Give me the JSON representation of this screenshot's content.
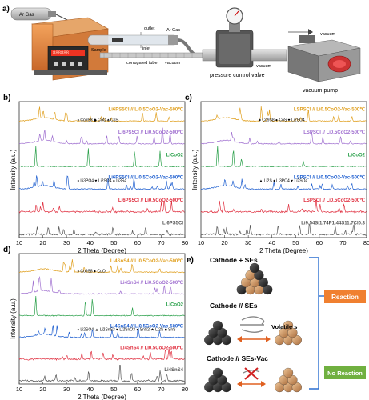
{
  "panel_a": {
    "label": "a)",
    "ar_gas_1": "Ar Gas",
    "ar_gas_2": "Ar Gas",
    "outlet": "outlet",
    "inlet": "inlet",
    "sample": "Sample",
    "corrugated_tube": "corrugated tube",
    "vacuum_1": "vacuum",
    "vacuum_2": "vacuum",
    "vacuum_3": "vacuum",
    "pressure_control_valve": "pressure control valve",
    "vacuum_pump": "vacuum pump",
    "furnace_display": "888888"
  },
  "axes": {
    "xlabel": "2 Theta (Degree)",
    "ylabel": "Intensity (a.u.)",
    "xticks": [
      "10",
      "20",
      "30",
      "40",
      "50",
      "60",
      "70",
      "80"
    ]
  },
  "panel_b": {
    "label": "b)",
    "traces": [
      {
        "label": "Li6PS5Cl // Li0.5CoO2-Vac-500℃",
        "color": "#e0a020"
      },
      {
        "label": "Li6PS5Cl // Li0.5CoO2-500℃",
        "color": "#a070d0"
      },
      {
        "label": "LiCoO2",
        "color": "#2aa04a"
      },
      {
        "label": "Li6PS5Cl // Li0.5CoO2-Vac-500℃",
        "color": "#2060d0"
      },
      {
        "label": "Li6PS5Cl // Li0.5CoO2-500℃",
        "color": "#e03040"
      },
      {
        "label": "Li6PS5Cl",
        "color": "#555555"
      }
    ],
    "annotations": [
      "♦ Co9S8 ◆ CoO ♠ CoS",
      "♦ Li3PO4 ♥ Li2SO4 ● Li3S4"
    ]
  },
  "panel_c": {
    "label": "c)",
    "traces": [
      {
        "label": "LSPSCl // Li0.5CoO2-Vac-500℃",
        "color": "#e0a020"
      },
      {
        "label": "LSPSCl // Li0.5CoO2-500℃",
        "color": "#a070d0"
      },
      {
        "label": "LiCoO2",
        "color": "#2aa04a"
      },
      {
        "label": "LSPSCl // Li0.5CoO2-Vac-500℃",
        "color": "#2060d0"
      },
      {
        "label": "LSPSCl // Li0.5CoO2-500℃",
        "color": "#e03040"
      },
      {
        "label": "Li9.54Si1.74P1.44S11.7Cl0.3",
        "color": "#555555"
      }
    ],
    "annotations": [
      "♦ Co9S8 ● CoS ♥ Li2SO4",
      "▲ Li2S ♦ Li3PO4 ♥ Li2SO4"
    ]
  },
  "panel_d": {
    "label": "d)",
    "traces": [
      {
        "label": "Li4SnS4 // Li0.5CoO2-Vac-500℃",
        "color": "#e0a020"
      },
      {
        "label": "Li4SnS4 // Li0.5CoO2-500℃",
        "color": "#a070d0"
      },
      {
        "label": "LiCoO2",
        "color": "#2aa04a"
      },
      {
        "label": "Li4SnS4 // Li0.5CoO2-Vac-500℃",
        "color": "#2060d0"
      },
      {
        "label": "Li4SnS4 // Li0.5CoO2-500℃",
        "color": "#e03040"
      },
      {
        "label": "Li4SnS4",
        "color": "#555555"
      }
    ],
    "annotations": [
      "♦ Co9S8 ● CuO",
      "♦ Li2SO4 ▲ Li2SnS3 ♥ Li2SnO3 ● SnS2 ★ Li2S ■ SnS"
    ]
  },
  "panel_e": {
    "label": "e)",
    "row1": "Cathode + SEs",
    "row2": "Cathode // SEs",
    "row3": "Cathode // SEs-Vac",
    "volatiles": "Volatile s",
    "reaction": "Reaction",
    "no_reaction": "No Reaction",
    "reaction_color": "#f08030",
    "no_reaction_color": "#70b040"
  }
}
